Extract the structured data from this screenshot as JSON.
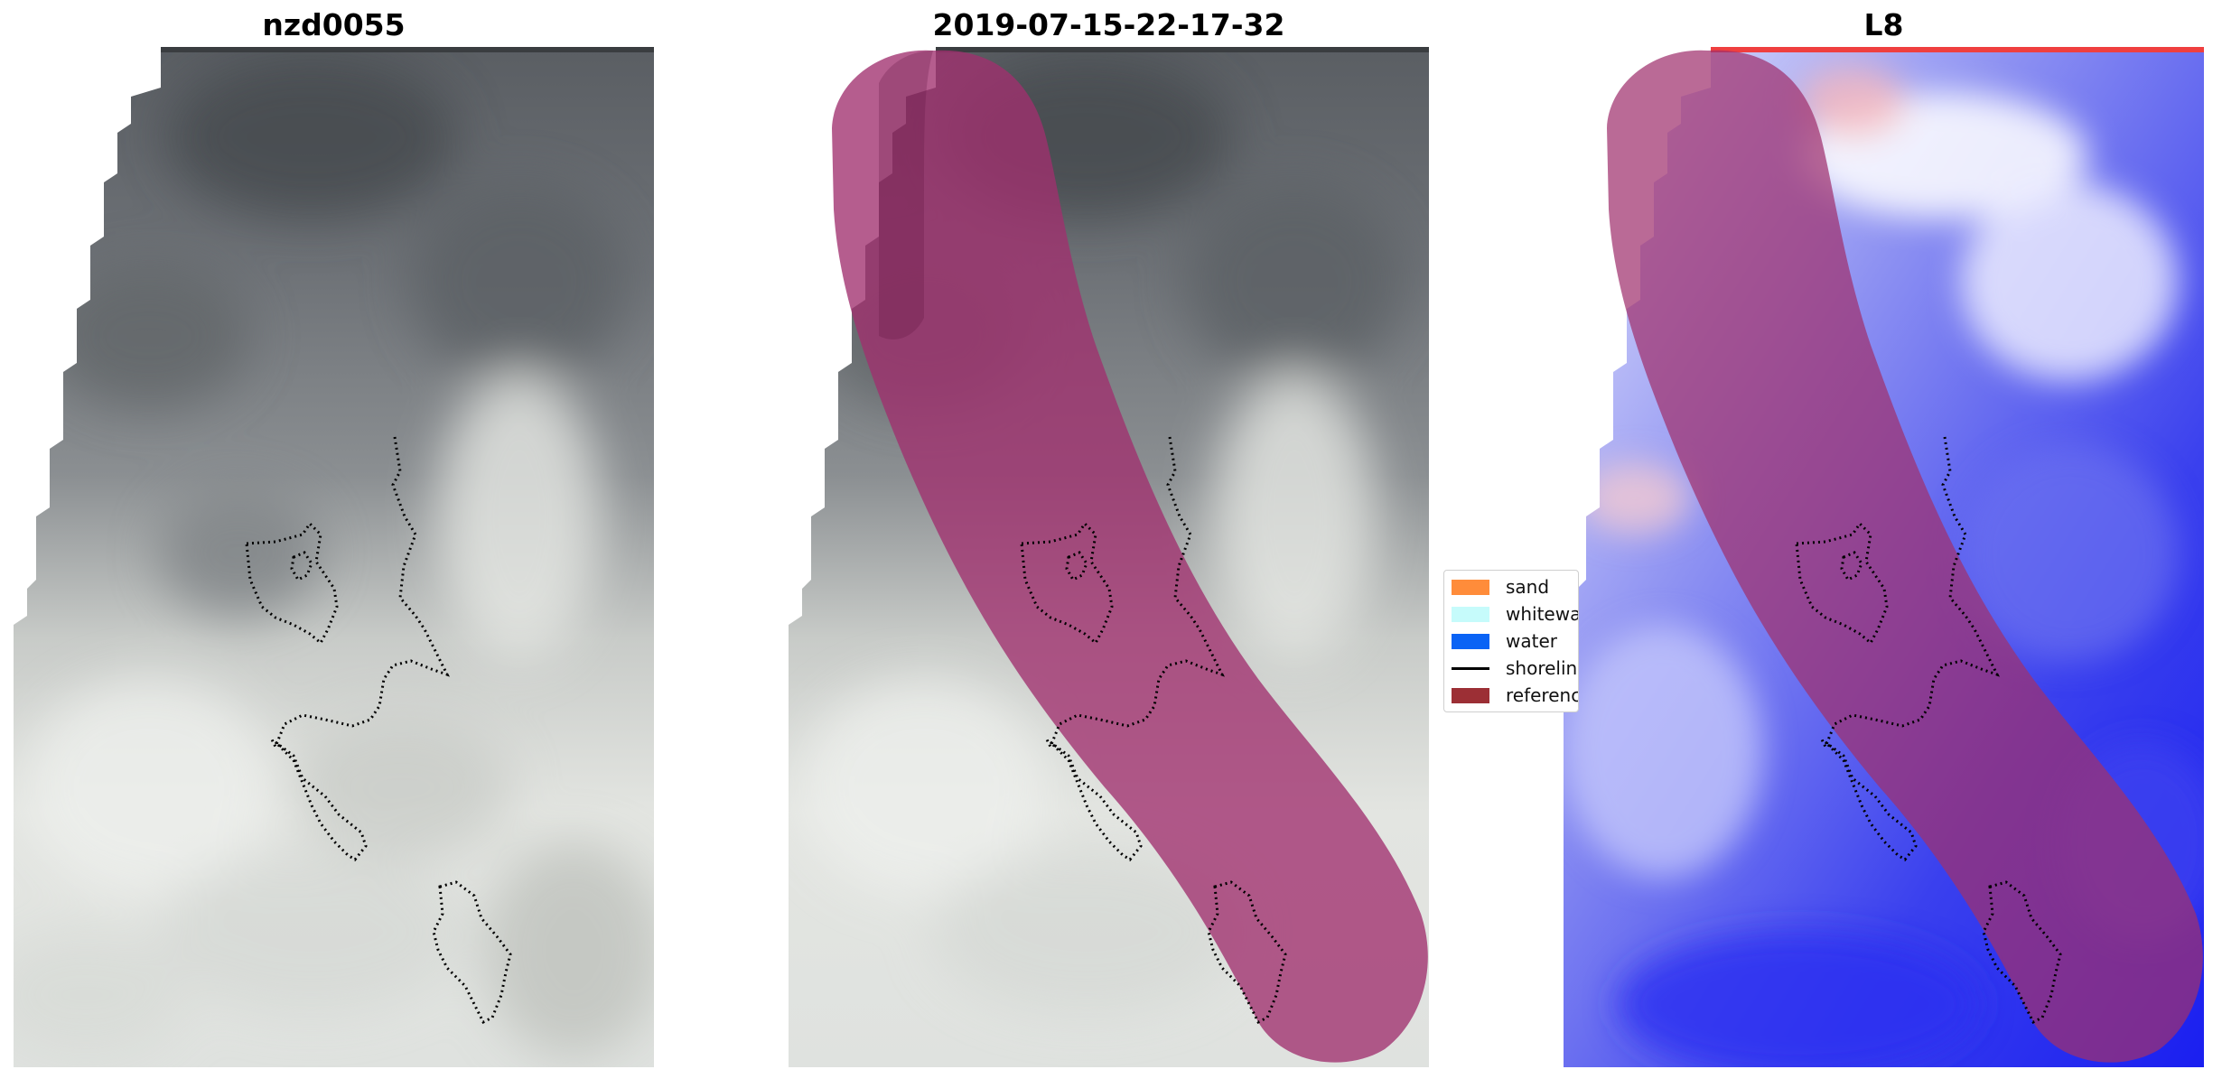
{
  "panels": [
    {
      "title": "nzd0055"
    },
    {
      "title": "2019-07-15-22-17-32"
    },
    {
      "title": "L8"
    }
  ],
  "legend": {
    "items": [
      {
        "label": "sand",
        "color": "#ff8c3a",
        "kind": "patch"
      },
      {
        "label": "whitewater",
        "color": "#c6fbfb",
        "kind": "patch"
      },
      {
        "label": "water",
        "color": "#0a63f5",
        "kind": "patch"
      },
      {
        "label": "shoreline",
        "color": "#000000",
        "kind": "line"
      },
      {
        "label": "reference",
        "color": "#9c2f35",
        "kind": "patch"
      }
    ]
  },
  "colors": {
    "buffer_overlay": "#a0306e",
    "cloud_dark": "#55595d",
    "cloud_light": "#e4e6e2",
    "water_index_blue": "#1f27ee"
  }
}
